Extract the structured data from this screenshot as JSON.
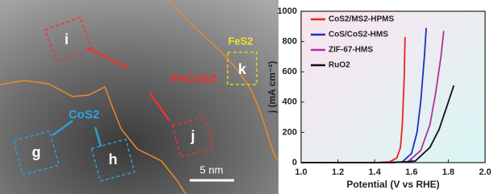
{
  "image": {
    "labels": [
      "i",
      "FeCoS2",
      "FeS2",
      "k",
      "CoS2",
      "j",
      "g",
      "h",
      "5 nm"
    ]
  },
  "chart_data": {
    "type": "line",
    "xlabel": "Potential (V vs RHE)",
    "ylabel": "j (mA cm⁻²)",
    "xlim": [
      1.0,
      2.0
    ],
    "ylim": [
      0,
      1000
    ],
    "xticks": [
      {
        "value": 1.0,
        "label": "1.0"
      },
      {
        "value": 1.2,
        "label": "1.2"
      },
      {
        "value": 1.4,
        "label": "1.4"
      },
      {
        "value": 1.6,
        "label": "1.6"
      },
      {
        "value": 1.8,
        "label": "1.8"
      },
      {
        "value": 2.0,
        "label": "2.0"
      }
    ],
    "yticks": [
      0,
      200,
      400,
      600,
      800,
      1000
    ],
    "legend": "upper left",
    "series": [
      {
        "name": "CoS2/MS2-HPMS",
        "color": "#e8231f",
        "x": [
          1.0,
          1.4,
          1.48,
          1.52,
          1.54,
          1.55,
          1.56,
          1.565
        ],
        "values": [
          0,
          0,
          5,
          30,
          100,
          250,
          550,
          830
        ]
      },
      {
        "name": "CoS/CoS2-HMS",
        "color": "#1f2fc0",
        "x": [
          1.0,
          1.45,
          1.55,
          1.6,
          1.63,
          1.65,
          1.67,
          1.68
        ],
        "values": [
          0,
          0,
          5,
          60,
          200,
          400,
          700,
          890
        ]
      },
      {
        "name": "ZIF-67-HMS",
        "color": "#b0339a",
        "x": [
          1.0,
          1.48,
          1.58,
          1.65,
          1.7,
          1.73,
          1.76,
          1.775
        ],
        "values": [
          0,
          0,
          5,
          80,
          250,
          450,
          700,
          870
        ]
      },
      {
        "name": "RuO2",
        "color": "#111111",
        "x": [
          1.0,
          1.5,
          1.62,
          1.7,
          1.75,
          1.8,
          1.83
        ],
        "values": [
          0,
          0,
          10,
          100,
          220,
          400,
          510
        ]
      }
    ]
  }
}
